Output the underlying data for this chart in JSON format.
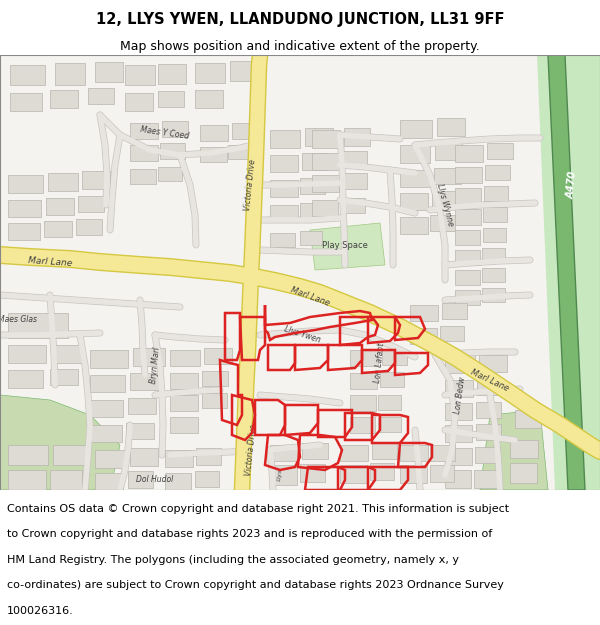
{
  "title_line1": "12, LLYS YWEN, LLANDUDNO JUNCTION, LL31 9FF",
  "title_line2": "Map shows position and indicative extent of the property.",
  "footer_lines": [
    "Contains OS data © Crown copyright and database right 2021. This information is subject",
    "to Crown copyright and database rights 2023 and is reproduced with the permission of",
    "HM Land Registry. The polygons (including the associated geometry, namely x, y",
    "co-ordinates) are subject to Crown copyright and database rights 2023 Ordnance Survey",
    "100026316."
  ],
  "title_fontsize": 10.5,
  "subtitle_fontsize": 9.0,
  "footer_fontsize": 8.0,
  "fig_width": 6.0,
  "fig_height": 6.25,
  "map_bg_color": "#f5f3f0",
  "building_color": "#dedad4",
  "building_outline": "#b8b4ae",
  "green_color": "#c8dbb0",
  "green_dark": "#7ab870",
  "highlight_color": "#dd2222",
  "yellow_road": "#f5e896",
  "yellow_road_border": "#d4c840",
  "grey_road": "#e8e5e0",
  "grey_road_border": "#c8c5c0",
  "a470_green": "#7ab870",
  "a470_light": "#a8d090",
  "title_color": "#000000",
  "footer_color": "#000000",
  "border_color": "#888888"
}
